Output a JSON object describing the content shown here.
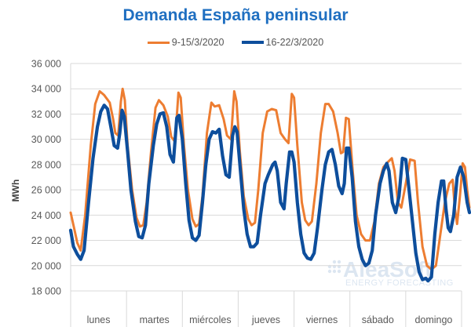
{
  "chart_data": {
    "type": "line",
    "title": "Demanda España peninsular",
    "ylabel": "MWh",
    "ylim": [
      18000,
      36000
    ],
    "yticks": [
      18000,
      20000,
      22000,
      24000,
      26000,
      28000,
      30000,
      32000,
      34000,
      36000
    ],
    "ytick_labels": [
      "18 000",
      "20 000",
      "22 000",
      "24 000",
      "26 000",
      "28 000",
      "30 000",
      "32 000",
      "34 000",
      "36 000"
    ],
    "categories": [
      "lunes",
      "martes",
      "miércoles",
      "jueves",
      "viernes",
      "sábado",
      "domingo"
    ],
    "grid": true,
    "legend": "top",
    "series": [
      {
        "name": "9-15/3/2020",
        "color": "#ed7d31",
        "points": [
          [
            0.0,
            24200
          ],
          [
            0.06,
            23000
          ],
          [
            0.12,
            21800
          ],
          [
            0.18,
            21200
          ],
          [
            0.26,
            24000
          ],
          [
            0.36,
            29500
          ],
          [
            0.44,
            32800
          ],
          [
            0.52,
            33800
          ],
          [
            0.6,
            33500
          ],
          [
            0.7,
            32900
          ],
          [
            0.76,
            31600
          ],
          [
            0.8,
            30500
          ],
          [
            0.85,
            30300
          ],
          [
            0.9,
            33000
          ],
          [
            0.93,
            34000
          ],
          [
            0.97,
            33100
          ],
          [
            1.02,
            29500
          ],
          [
            1.1,
            26000
          ],
          [
            1.18,
            23800
          ],
          [
            1.24,
            23100
          ],
          [
            1.3,
            23200
          ],
          [
            1.36,
            25000
          ],
          [
            1.44,
            29000
          ],
          [
            1.52,
            32500
          ],
          [
            1.58,
            33100
          ],
          [
            1.66,
            32700
          ],
          [
            1.74,
            31800
          ],
          [
            1.8,
            30200
          ],
          [
            1.87,
            29800
          ],
          [
            1.93,
            33700
          ],
          [
            1.97,
            33300
          ],
          [
            2.03,
            29500
          ],
          [
            2.1,
            26000
          ],
          [
            2.18,
            23700
          ],
          [
            2.24,
            23100
          ],
          [
            2.3,
            23300
          ],
          [
            2.36,
            25500
          ],
          [
            2.44,
            30500
          ],
          [
            2.52,
            32900
          ],
          [
            2.58,
            32600
          ],
          [
            2.66,
            32700
          ],
          [
            2.74,
            31600
          ],
          [
            2.8,
            30300
          ],
          [
            2.87,
            30000
          ],
          [
            2.93,
            33800
          ],
          [
            2.97,
            33000
          ],
          [
            3.03,
            29000
          ],
          [
            3.1,
            25500
          ],
          [
            3.18,
            23700
          ],
          [
            3.24,
            23200
          ],
          [
            3.3,
            23400
          ],
          [
            3.36,
            26000
          ],
          [
            3.44,
            30500
          ],
          [
            3.52,
            32200
          ],
          [
            3.6,
            32400
          ],
          [
            3.68,
            32300
          ],
          [
            3.76,
            30500
          ],
          [
            3.84,
            30000
          ],
          [
            3.9,
            29700
          ],
          [
            3.96,
            33600
          ],
          [
            4.0,
            33300
          ],
          [
            4.06,
            29500
          ],
          [
            4.14,
            25000
          ],
          [
            4.2,
            23600
          ],
          [
            4.26,
            23200
          ],
          [
            4.32,
            23500
          ],
          [
            4.4,
            26500
          ],
          [
            4.48,
            30500
          ],
          [
            4.56,
            32800
          ],
          [
            4.62,
            32800
          ],
          [
            4.7,
            32200
          ],
          [
            4.78,
            30500
          ],
          [
            4.84,
            28900
          ],
          [
            4.88,
            29000
          ],
          [
            4.93,
            31700
          ],
          [
            4.98,
            31600
          ],
          [
            5.05,
            27500
          ],
          [
            5.12,
            24000
          ],
          [
            5.2,
            22500
          ],
          [
            5.28,
            22000
          ],
          [
            5.36,
            22000
          ],
          [
            5.44,
            23500
          ],
          [
            5.52,
            26500
          ],
          [
            5.6,
            27800
          ],
          [
            5.68,
            28200
          ],
          [
            5.75,
            28500
          ],
          [
            5.8,
            27500
          ],
          [
            5.86,
            25000
          ],
          [
            5.92,
            24600
          ],
          [
            6.0,
            26500
          ],
          [
            6.08,
            28400
          ],
          [
            6.16,
            28300
          ],
          [
            6.22,
            25000
          ],
          [
            6.3,
            21500
          ],
          [
            6.38,
            20000
          ],
          [
            6.46,
            19700
          ],
          [
            6.54,
            20000
          ],
          [
            6.62,
            22500
          ],
          [
            6.7,
            25000
          ],
          [
            6.78,
            26500
          ],
          [
            6.84,
            26800
          ],
          [
            6.88,
            24500
          ],
          [
            6.92,
            23300
          ],
          [
            6.97,
            25500
          ],
          [
            7.02,
            28100
          ],
          [
            7.06,
            27800
          ],
          [
            7.1,
            26000
          ],
          [
            7.14,
            24600
          ]
        ]
      },
      {
        "name": "16-22/3/2020",
        "color": "#0d4e9c",
        "points": [
          [
            0.0,
            22800
          ],
          [
            0.05,
            21500
          ],
          [
            0.12,
            20900
          ],
          [
            0.18,
            20500
          ],
          [
            0.24,
            21200
          ],
          [
            0.32,
            25000
          ],
          [
            0.4,
            28500
          ],
          [
            0.48,
            31000
          ],
          [
            0.54,
            32200
          ],
          [
            0.6,
            32700
          ],
          [
            0.66,
            32400
          ],
          [
            0.72,
            31000
          ],
          [
            0.78,
            29500
          ],
          [
            0.84,
            29300
          ],
          [
            0.88,
            30500
          ],
          [
            0.92,
            32300
          ],
          [
            0.96,
            31800
          ],
          [
            1.02,
            29000
          ],
          [
            1.08,
            26000
          ],
          [
            1.16,
            23500
          ],
          [
            1.22,
            22300
          ],
          [
            1.28,
            22200
          ],
          [
            1.34,
            23200
          ],
          [
            1.4,
            26500
          ],
          [
            1.48,
            29500
          ],
          [
            1.54,
            31200
          ],
          [
            1.6,
            32000
          ],
          [
            1.66,
            32100
          ],
          [
            1.72,
            31000
          ],
          [
            1.78,
            28800
          ],
          [
            1.84,
            28200
          ],
          [
            1.9,
            31700
          ],
          [
            1.94,
            31900
          ],
          [
            2.0,
            30000
          ],
          [
            2.06,
            26500
          ],
          [
            2.12,
            23600
          ],
          [
            2.18,
            22200
          ],
          [
            2.24,
            22000
          ],
          [
            2.3,
            22400
          ],
          [
            2.36,
            25000
          ],
          [
            2.42,
            28000
          ],
          [
            2.48,
            30000
          ],
          [
            2.54,
            30600
          ],
          [
            2.6,
            30500
          ],
          [
            2.66,
            30800
          ],
          [
            2.72,
            28700
          ],
          [
            2.78,
            27200
          ],
          [
            2.84,
            27000
          ],
          [
            2.9,
            30300
          ],
          [
            2.94,
            31000
          ],
          [
            2.98,
            30600
          ],
          [
            3.04,
            27500
          ],
          [
            3.1,
            24500
          ],
          [
            3.16,
            22500
          ],
          [
            3.22,
            21500
          ],
          [
            3.28,
            21500
          ],
          [
            3.34,
            21800
          ],
          [
            3.4,
            24000
          ],
          [
            3.48,
            26500
          ],
          [
            3.54,
            27200
          ],
          [
            3.62,
            28000
          ],
          [
            3.66,
            28200
          ],
          [
            3.7,
            27500
          ],
          [
            3.76,
            25000
          ],
          [
            3.82,
            24500
          ],
          [
            3.86,
            26500
          ],
          [
            3.92,
            29000
          ],
          [
            3.96,
            29000
          ],
          [
            4.0,
            28200
          ],
          [
            4.06,
            25000
          ],
          [
            4.12,
            22500
          ],
          [
            4.18,
            21000
          ],
          [
            4.24,
            20600
          ],
          [
            4.3,
            20500
          ],
          [
            4.36,
            21000
          ],
          [
            4.42,
            23000
          ],
          [
            4.5,
            26000
          ],
          [
            4.56,
            28000
          ],
          [
            4.62,
            29000
          ],
          [
            4.68,
            29200
          ],
          [
            4.74,
            28000
          ],
          [
            4.8,
            26300
          ],
          [
            4.86,
            25700
          ],
          [
            4.9,
            26500
          ],
          [
            4.94,
            29300
          ],
          [
            4.98,
            29300
          ],
          [
            5.04,
            27000
          ],
          [
            5.1,
            23500
          ],
          [
            5.16,
            21500
          ],
          [
            5.22,
            20500
          ],
          [
            5.28,
            20000
          ],
          [
            5.34,
            20200
          ],
          [
            5.4,
            21200
          ],
          [
            5.46,
            24000
          ],
          [
            5.54,
            26500
          ],
          [
            5.6,
            27500
          ],
          [
            5.66,
            28100
          ],
          [
            5.7,
            27500
          ],
          [
            5.76,
            25000
          ],
          [
            5.82,
            24200
          ],
          [
            5.88,
            25500
          ],
          [
            5.94,
            28500
          ],
          [
            6.0,
            28400
          ],
          [
            6.06,
            26000
          ],
          [
            6.12,
            23500
          ],
          [
            6.18,
            21000
          ],
          [
            6.24,
            19500
          ],
          [
            6.3,
            18900
          ],
          [
            6.36,
            19000
          ],
          [
            6.4,
            18800
          ],
          [
            6.46,
            19100
          ],
          [
            6.52,
            22500
          ],
          [
            6.58,
            25000
          ],
          [
            6.64,
            26700
          ],
          [
            6.68,
            26700
          ],
          [
            6.72,
            24500
          ],
          [
            6.76,
            23000
          ],
          [
            6.8,
            22700
          ],
          [
            6.86,
            24000
          ],
          [
            6.92,
            27000
          ],
          [
            6.98,
            27800
          ],
          [
            7.04,
            27000
          ],
          [
            7.1,
            25000
          ],
          [
            7.14,
            24200
          ]
        ]
      }
    ]
  },
  "watermark": {
    "brand": "AleaSoft",
    "tagline": "ENERGY FORECASTING"
  }
}
